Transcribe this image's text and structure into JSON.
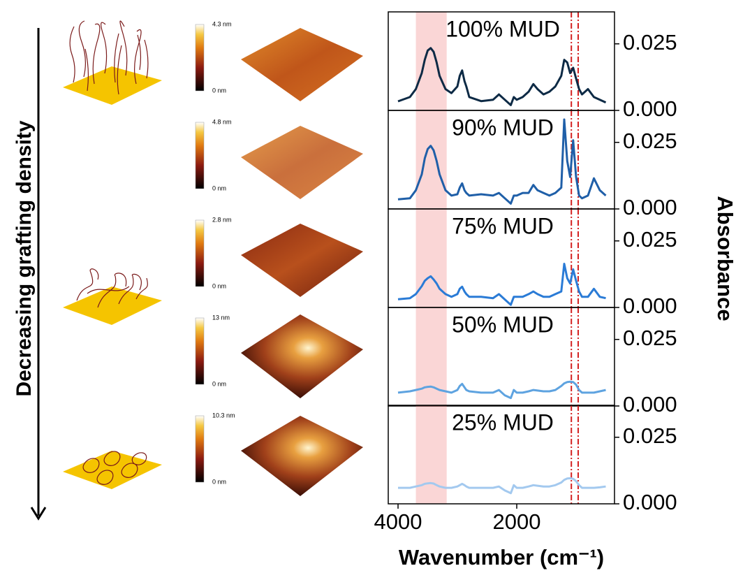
{
  "side_label": "Decreasing grafting density",
  "afm": [
    {
      "max_label": "4.3 nm",
      "min_label": "0 nm"
    },
    {
      "max_label": "4.8 nm",
      "min_label": "0 nm"
    },
    {
      "max_label": "2.8 nm",
      "min_label": "0 nm"
    },
    {
      "max_label": "13 nm",
      "min_label": "0 nm"
    },
    {
      "max_label": "10.3 nm",
      "min_label": "0 nm"
    }
  ],
  "chart_data": [
    {
      "type": "line",
      "title": "100% MUD",
      "x": [
        4000,
        3800,
        3700,
        3600,
        3550,
        3500,
        3450,
        3400,
        3350,
        3300,
        3200,
        3100,
        3000,
        2960,
        2920,
        2880,
        2850,
        2800,
        2600,
        2400,
        2300,
        2200,
        2100,
        2050,
        2000,
        1900,
        1800,
        1720,
        1650,
        1550,
        1450,
        1350,
        1250,
        1200,
        1150,
        1100,
        1050,
        1000,
        950,
        900,
        800,
        700,
        600,
        500
      ],
      "series": [
        {
          "color": "#0d2a45",
          "values": [
            0.0034,
            0.005,
            0.008,
            0.014,
            0.019,
            0.0225,
            0.0234,
            0.022,
            0.018,
            0.013,
            0.008,
            0.0065,
            0.009,
            0.013,
            0.015,
            0.011,
            0.009,
            0.005,
            0.0035,
            0.004,
            0.006,
            0.004,
            0.002,
            0.005,
            0.004,
            0.005,
            0.007,
            0.0099,
            0.008,
            0.006,
            0.007,
            0.009,
            0.013,
            0.019,
            0.018,
            0.014,
            0.016,
            0.012,
            0.008,
            0.006,
            0.008,
            0.005,
            0.004,
            0.003
          ]
        }
      ],
      "xlim": [
        4165,
        353
      ],
      "ylim": [
        0,
        0.037
      ],
      "yticks": [
        {
          "value": 0,
          "label": "0.000"
        },
        {
          "value": 0.025,
          "label": "0.025"
        }
      ],
      "shaded_xrange": [
        3700,
        3180
      ],
      "vlines": [
        1080,
        965
      ]
    },
    {
      "type": "line",
      "title": "90% MUD",
      "x": [
        4000,
        3800,
        3700,
        3600,
        3550,
        3500,
        3450,
        3400,
        3350,
        3300,
        3200,
        3100,
        3000,
        2960,
        2920,
        2880,
        2850,
        2800,
        2600,
        2400,
        2300,
        2200,
        2100,
        2050,
        2000,
        1900,
        1800,
        1720,
        1650,
        1550,
        1450,
        1350,
        1250,
        1200,
        1150,
        1100,
        1050,
        1000,
        950,
        900,
        800,
        700,
        600,
        500
      ],
      "series": [
        {
          "color": "#1f5fa8",
          "values": [
            0.0036,
            0.004,
            0.007,
            0.013,
            0.019,
            0.0225,
            0.0237,
            0.022,
            0.018,
            0.013,
            0.007,
            0.005,
            0.0055,
            0.008,
            0.0096,
            0.007,
            0.006,
            0.005,
            0.0055,
            0.005,
            0.006,
            0.004,
            0.002,
            0.005,
            0.005,
            0.006,
            0.006,
            0.009,
            0.007,
            0.006,
            0.005,
            0.006,
            0.008,
            0.0336,
            0.018,
            0.012,
            0.0258,
            0.012,
            0.005,
            0.004,
            0.005,
            0.0115,
            0.007,
            0.005
          ]
        }
      ],
      "xlim": [
        4165,
        353
      ],
      "ylim": [
        0,
        0.037
      ],
      "yticks": [
        {
          "value": 0,
          "label": "0.000"
        },
        {
          "value": 0.025,
          "label": "0.025"
        }
      ],
      "shaded_xrange": [
        3700,
        3180
      ],
      "vlines": [
        1080,
        965
      ]
    },
    {
      "type": "line",
      "title": "75% MUD",
      "x": [
        4000,
        3800,
        3700,
        3600,
        3550,
        3500,
        3450,
        3400,
        3350,
        3300,
        3200,
        3100,
        3000,
        2960,
        2920,
        2880,
        2850,
        2800,
        2600,
        2400,
        2300,
        2200,
        2100,
        2050,
        2000,
        1900,
        1800,
        1720,
        1650,
        1550,
        1450,
        1350,
        1250,
        1200,
        1150,
        1100,
        1050,
        1000,
        950,
        900,
        800,
        700,
        600,
        500
      ],
      "series": [
        {
          "color": "#2a7bd6",
          "values": [
            0.0031,
            0.0035,
            0.005,
            0.008,
            0.01,
            0.011,
            0.0117,
            0.0105,
            0.009,
            0.007,
            0.005,
            0.004,
            0.005,
            0.007,
            0.0078,
            0.006,
            0.005,
            0.004,
            0.004,
            0.0035,
            0.005,
            0.003,
            0.001,
            0.004,
            0.004,
            0.004,
            0.005,
            0.006,
            0.005,
            0.004,
            0.004,
            0.005,
            0.006,
            0.0164,
            0.011,
            0.009,
            0.0143,
            0.01,
            0.006,
            0.004,
            0.004,
            0.007,
            0.004,
            0.0035
          ]
        }
      ],
      "xlim": [
        4165,
        353
      ],
      "ylim": [
        0,
        0.037
      ],
      "yticks": [
        {
          "value": 0,
          "label": "0.000"
        },
        {
          "value": 0.025,
          "label": "0.025"
        }
      ],
      "shaded_xrange": [
        3700,
        3180
      ],
      "vlines": [
        1080,
        965
      ],
      "y_label": "Absorbance"
    },
    {
      "type": "line",
      "title": "50% MUD",
      "x": [
        4000,
        3800,
        3700,
        3600,
        3550,
        3500,
        3450,
        3400,
        3350,
        3300,
        3200,
        3100,
        3000,
        2960,
        2920,
        2880,
        2850,
        2800,
        2600,
        2400,
        2300,
        2200,
        2100,
        2050,
        2000,
        1900,
        1800,
        1720,
        1650,
        1550,
        1450,
        1350,
        1250,
        1200,
        1150,
        1100,
        1050,
        1000,
        950,
        900,
        800,
        700,
        600,
        500
      ],
      "series": [
        {
          "color": "#5ea3e0",
          "values": [
            0.005,
            0.0055,
            0.006,
            0.0065,
            0.007,
            0.0072,
            0.0073,
            0.007,
            0.0065,
            0.006,
            0.0055,
            0.005,
            0.006,
            0.0075,
            0.0083,
            0.007,
            0.006,
            0.0055,
            0.005,
            0.005,
            0.006,
            0.004,
            0.003,
            0.006,
            0.005,
            0.005,
            0.0055,
            0.006,
            0.0058,
            0.0055,
            0.0055,
            0.006,
            0.0075,
            0.0085,
            0.009,
            0.0091,
            0.009,
            0.008,
            0.006,
            0.005,
            0.005,
            0.005,
            0.0055,
            0.006
          ]
        }
      ],
      "xlim": [
        4165,
        353
      ],
      "ylim": [
        0,
        0.037
      ],
      "yticks": [
        {
          "value": 0,
          "label": "0.000"
        },
        {
          "value": 0.025,
          "label": "0.025"
        }
      ],
      "shaded_xrange": [
        3700,
        3180
      ],
      "vlines": [
        1080,
        965
      ]
    },
    {
      "type": "line",
      "title": "25% MUD",
      "x": [
        4000,
        3800,
        3700,
        3600,
        3550,
        3500,
        3450,
        3400,
        3350,
        3300,
        3200,
        3100,
        3000,
        2960,
        2920,
        2880,
        2850,
        2800,
        2600,
        2400,
        2300,
        2200,
        2100,
        2050,
        2000,
        1900,
        1800,
        1720,
        1650,
        1550,
        1450,
        1350,
        1250,
        1200,
        1150,
        1100,
        1050,
        1000,
        950,
        900,
        800,
        700,
        600,
        500
      ],
      "series": [
        {
          "color": "#a3c9ef",
          "values": [
            0.006,
            0.006,
            0.0065,
            0.007,
            0.0075,
            0.0077,
            0.0078,
            0.0076,
            0.007,
            0.0065,
            0.006,
            0.006,
            0.0065,
            0.007,
            0.0075,
            0.007,
            0.0065,
            0.006,
            0.006,
            0.006,
            0.0065,
            0.005,
            0.004,
            0.007,
            0.006,
            0.006,
            0.0065,
            0.007,
            0.0068,
            0.0065,
            0.0065,
            0.007,
            0.008,
            0.009,
            0.0095,
            0.0096,
            0.0094,
            0.0085,
            0.007,
            0.006,
            0.006,
            0.006,
            0.0062,
            0.0065
          ]
        }
      ],
      "xlim": [
        4165,
        353
      ],
      "ylim": [
        0,
        0.037
      ],
      "yticks": [
        {
          "value": 0,
          "label": "0.000"
        },
        {
          "value": 0.025,
          "label": "0.025"
        }
      ],
      "xticks": [
        4000,
        2000
      ],
      "x_label": "Wavenumber (cm⁻¹)",
      "shaded_xrange": [
        3700,
        3180
      ],
      "vlines": [
        1080,
        965
      ]
    }
  ]
}
